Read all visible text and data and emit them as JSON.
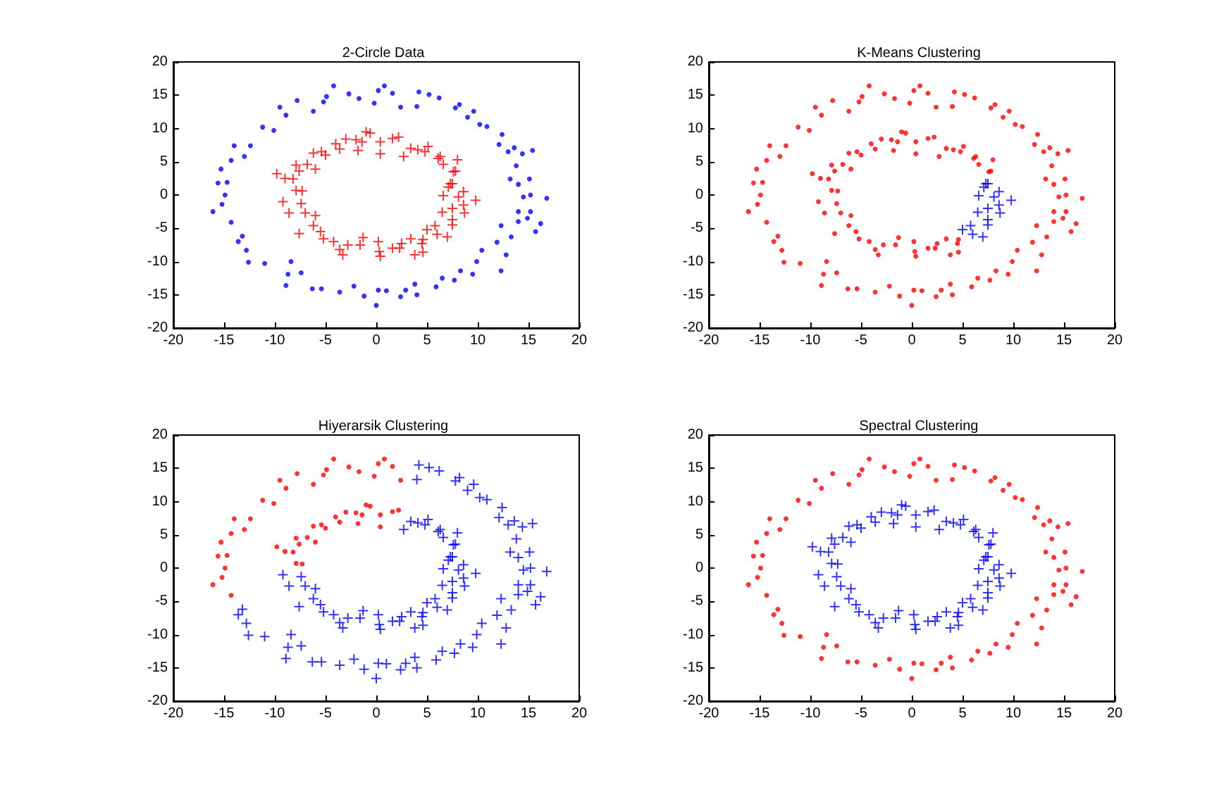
{
  "chart_data": [
    {
      "type": "scatter",
      "title": "2-Circle Data",
      "xlim": [
        -20,
        20
      ],
      "ylim": [
        -20,
        20
      ],
      "xticks": [
        -20,
        -15,
        -10,
        -5,
        0,
        5,
        10,
        15,
        20
      ],
      "yticks": [
        -20,
        -15,
        -10,
        -5,
        0,
        5,
        10,
        15,
        20
      ],
      "series": [
        {
          "color": "#0000ff",
          "marker": "circle",
          "x": [
            -4.2,
            0.8,
            0.2,
            1.6,
            -2.7,
            -1.7,
            -4.9,
            -5.2,
            -7.8,
            -9.5,
            -8.9,
            -6.2,
            -10.1,
            -11.2,
            -12.4,
            -14.0,
            -14.3,
            -13.0,
            -15.3,
            -14.7,
            -15.6,
            -14.9,
            -16.1,
            -15.2,
            -14.3,
            2.4,
            -0.2,
            -13.2,
            -13.6,
            -12.8,
            -12.6,
            -11.0,
            -8.4,
            -8.7,
            -7.4,
            -8.9,
            -6.3,
            -5.4,
            -3.6,
            -2.2,
            -1.2,
            0,
            0.2,
            1.0,
            2.4,
            2.9,
            4.0,
            3.8,
            5.9,
            6.5,
            7.7,
            8.3,
            9.5,
            9.9,
            10.4,
            12.3,
            12.3,
            11.9,
            12.8,
            13.3,
            14.0,
            14.0,
            14.9,
            15.7,
            16.2,
            15.2,
            14.5,
            15.2,
            16.8,
            14.0,
            13.2,
            15.1,
            13.8,
            15.4,
            14.4,
            13.6,
            13.0,
            12.1,
            12.4,
            10.2,
            10.9,
            9.0,
            9.6,
            8.2,
            7.8,
            6.2,
            5.2,
            4.2,
            4.0
          ],
          "values": [
            16.4,
            16.4,
            15.7,
            15.3,
            15.2,
            14.5,
            14.8,
            14.0,
            14.2,
            13.2,
            12.0,
            12.6,
            9.7,
            10.2,
            7.4,
            7.4,
            5.2,
            5.8,
            3.9,
            1.9,
            1.8,
            0,
            -2.5,
            -1.4,
            -4.1,
            13.2,
            13.8,
            -6.2,
            -7.0,
            -8.3,
            -10.1,
            -10.3,
            -10.0,
            -11.9,
            -11.7,
            -13.6,
            -14.1,
            -14.1,
            -14.6,
            -13.7,
            -15.2,
            -16.6,
            -14.3,
            -14.4,
            -15.3,
            -14.3,
            -15.0,
            -13.4,
            -13.8,
            -12.5,
            -12.8,
            -11.4,
            -11.9,
            -10.0,
            -8.3,
            -11.4,
            -4.6,
            -7.1,
            -9.0,
            -6.3,
            -4.0,
            -2.5,
            -3.5,
            -5.5,
            -4.3,
            -2.5,
            -0.3,
            0,
            -0.5,
            1.6,
            2.4,
            2.4,
            4.4,
            6.7,
            6.2,
            7.1,
            6.5,
            7.6,
            9.1,
            10.6,
            10.3,
            11.7,
            12.6,
            13.6,
            13.1,
            14.6,
            15.1,
            15.5,
            13.3
          ]
        },
        {
          "color": "#ff0000",
          "marker": "cross",
          "x": [
            -1.0,
            -0.6,
            -3.0,
            -2.0,
            -1.4,
            -4.0,
            -3.6,
            -1.8,
            0.4,
            1.6,
            2.2,
            0.4,
            -5.4,
            -6.2,
            -5.0,
            -6.8,
            -7.9,
            -7.6,
            -6.0,
            -9.8,
            -9.0,
            -8.2,
            -7.9,
            -7.3,
            -9.2,
            -7.4,
            -8.6,
            -7.0,
            -6.0,
            -7.6,
            -6.2,
            -5.5,
            -5.2,
            -4.2,
            -3.6,
            -3.3,
            -2.8,
            -1.6,
            -1.3,
            0.2,
            0.3,
            0.4,
            1.6,
            2.5,
            2.3,
            3.4,
            3.8,
            4.5,
            4.6,
            4.6,
            7.8,
            7.6,
            6.6,
            8.0,
            6.3,
            5.1,
            4.8,
            4.1,
            3.4,
            2.7,
            6.1,
            5.0,
            5.8,
            6.0,
            7.5,
            7.0,
            7.5,
            6.5,
            8.7,
            7.5,
            8.6,
            9.8,
            8.1,
            6.6,
            8.6,
            7.3,
            7.5,
            7.1
          ],
          "values": [
            9.5,
            9.3,
            8.4,
            8.3,
            8.0,
            7.7,
            6.9,
            6.7,
            8.0,
            8.5,
            8.7,
            6.2,
            6.5,
            6.3,
            6.0,
            4.6,
            4.5,
            3.6,
            3.9,
            3.2,
            2.5,
            2.4,
            0.7,
            0.6,
            -1.0,
            -1.3,
            -2.7,
            -2.7,
            -3.1,
            -5.8,
            -4.6,
            -5.5,
            -6.6,
            -7.0,
            -8.2,
            -9.0,
            -7.5,
            -7.5,
            -6.4,
            -7.0,
            -8.5,
            -9.2,
            -8.0,
            -7.3,
            -8.0,
            -6.6,
            -9.0,
            -7.3,
            -6.7,
            -8.6,
            3.6,
            3.5,
            4.6,
            5.3,
            5.8,
            7.3,
            6.5,
            6.8,
            7.0,
            5.8,
            5.5,
            -5.2,
            -4.6,
            -5.9,
            -4.5,
            -6.3,
            -3.7,
            -2.6,
            -2.7,
            -2.0,
            -1.5,
            -0.8,
            -0.3,
            -0.1,
            0.5,
            1.7,
            1.7,
            1.2
          ]
        }
      ]
    },
    {
      "type": "scatter",
      "title": "K-Means Clustering",
      "xlim": [
        -20,
        20
      ],
      "ylim": [
        -20,
        20
      ],
      "xticks": [
        -20,
        -15,
        -10,
        -5,
        0,
        5,
        10,
        15,
        20
      ],
      "yticks": [
        -20,
        -15,
        -10,
        -5,
        0,
        5,
        10,
        15,
        20
      ],
      "series": [
        {
          "color": "#ff0000",
          "marker": "circle",
          "x": [
            -4.2,
            0.8,
            0.2,
            1.6,
            -2.7,
            -1.7,
            -4.9,
            -5.2,
            -7.8,
            -9.5,
            -8.9,
            -6.2,
            -10.1,
            -11.2,
            -12.4,
            -14.0,
            -14.3,
            -13.0,
            -15.3,
            -14.7,
            -15.6,
            -14.9,
            -16.1,
            -15.2,
            -14.3,
            2.4,
            -0.2,
            -13.2,
            -13.6,
            -12.8,
            -12.6,
            -11.0,
            -8.4,
            -8.7,
            -7.4,
            -8.9,
            -6.3,
            -5.4,
            -3.6,
            -2.2,
            -1.2,
            0,
            0.2,
            1.0,
            2.4,
            2.9,
            4.0,
            3.8,
            5.9,
            6.5,
            7.7,
            8.3,
            9.5,
            9.9,
            10.4,
            12.3,
            12.3,
            11.9,
            12.8,
            13.3,
            14.0,
            14.0,
            14.9,
            15.7,
            16.2,
            15.2,
            14.5,
            15.2,
            16.8,
            14.0,
            13.2,
            15.1,
            13.8,
            15.4,
            14.4,
            13.6,
            13.0,
            12.1,
            12.4,
            10.2,
            10.9,
            9.0,
            9.6,
            8.2,
            7.8,
            6.2,
            5.2,
            4.2,
            4.0,
            -1.0,
            -0.6,
            -3.0,
            -2.0,
            -1.4,
            -4.0,
            -3.6,
            -1.8,
            0.4,
            1.6,
            2.2,
            0.4,
            -5.4,
            -6.2,
            -5.0,
            -6.8,
            -7.9,
            -7.6,
            -6.0,
            -9.8,
            -9.0,
            -8.2,
            -7.9,
            -7.3,
            -9.2,
            -7.4,
            -8.6,
            -7.0,
            -6.0,
            -7.6,
            -6.2,
            -5.5,
            -5.2,
            -4.2,
            -3.6,
            -3.3,
            -2.8,
            -1.6,
            -1.3,
            0.2,
            0.3,
            0.4,
            1.6,
            2.5,
            2.3,
            3.4,
            3.8,
            4.5,
            4.6,
            4.6,
            7.8,
            7.6,
            6.6,
            8.0,
            6.3,
            5.1,
            4.8,
            4.1,
            3.4,
            2.7,
            6.1
          ],
          "values": [
            16.4,
            16.4,
            15.7,
            15.3,
            15.2,
            14.5,
            14.8,
            14.0,
            14.2,
            13.2,
            12.0,
            12.6,
            9.7,
            10.2,
            7.4,
            7.4,
            5.2,
            5.8,
            3.9,
            1.9,
            1.8,
            0,
            -2.5,
            -1.4,
            -4.1,
            13.2,
            13.8,
            -6.2,
            -7.0,
            -8.3,
            -10.1,
            -10.3,
            -10.0,
            -11.9,
            -11.7,
            -13.6,
            -14.1,
            -14.1,
            -14.6,
            -13.7,
            -15.2,
            -16.6,
            -14.3,
            -14.4,
            -15.3,
            -14.3,
            -15.0,
            -13.4,
            -13.8,
            -12.5,
            -12.8,
            -11.4,
            -11.9,
            -10.0,
            -8.3,
            -11.4,
            -4.6,
            -7.1,
            -9.0,
            -6.3,
            -4.0,
            -2.5,
            -3.5,
            -5.5,
            -4.3,
            -2.5,
            -0.3,
            0,
            -0.5,
            1.6,
            2.4,
            2.4,
            4.4,
            6.7,
            6.2,
            7.1,
            6.5,
            7.6,
            9.1,
            10.6,
            10.3,
            11.7,
            12.6,
            13.6,
            13.1,
            14.6,
            15.1,
            15.5,
            13.3,
            9.5,
            9.3,
            8.4,
            8.3,
            8.0,
            7.7,
            6.9,
            6.7,
            8.0,
            8.5,
            8.7,
            6.2,
            6.5,
            6.3,
            6.0,
            4.6,
            4.5,
            3.6,
            3.9,
            3.2,
            2.5,
            2.4,
            0.7,
            0.6,
            -1.0,
            -1.3,
            -2.7,
            -2.7,
            -3.1,
            -5.8,
            -4.6,
            -5.5,
            -6.6,
            -7.0,
            -8.2,
            -9.0,
            -7.5,
            -7.5,
            -6.4,
            -7.0,
            -8.5,
            -9.2,
            -8.0,
            -7.3,
            -8.0,
            -6.6,
            -9.0,
            -7.3,
            -6.7,
            -8.6,
            3.6,
            3.5,
            4.6,
            5.3,
            5.8,
            7.3,
            6.5,
            6.8,
            7.0,
            5.8,
            5.5
          ]
        },
        {
          "color": "#0000ff",
          "marker": "cross",
          "x": [
            5.0,
            5.8,
            6.0,
            7.5,
            7.0,
            7.5,
            6.5,
            8.7,
            7.5,
            8.6,
            9.8,
            8.1,
            6.6,
            8.6,
            7.3,
            7.5,
            7.1
          ],
          "values": [
            -5.2,
            -4.6,
            -5.9,
            -4.5,
            -6.3,
            -3.7,
            -2.6,
            -2.7,
            -2.0,
            -1.5,
            -0.8,
            -0.3,
            -0.1,
            0.5,
            1.7,
            1.7,
            1.2
          ]
        }
      ]
    },
    {
      "type": "scatter",
      "title": "Hiyerarsik Clustering",
      "xlim": [
        -20,
        20
      ],
      "ylim": [
        -20,
        20
      ],
      "xticks": [
        -20,
        -15,
        -10,
        -5,
        0,
        5,
        10,
        15,
        20
      ],
      "yticks": [
        -20,
        -15,
        -10,
        -5,
        0,
        5,
        10,
        15,
        20
      ],
      "series": [
        {
          "color": "#ff0000",
          "marker": "circle",
          "x": [
            -4.2,
            0.8,
            0.2,
            1.6,
            -2.7,
            -1.7,
            -4.9,
            -5.2,
            -7.8,
            -9.5,
            -8.9,
            -6.2,
            -10.1,
            -11.2,
            -12.4,
            -14.0,
            -14.3,
            -13.0,
            -15.3,
            -14.7,
            -15.6,
            -14.9,
            -16.1,
            -15.2,
            -14.3,
            2.4,
            -0.2,
            -1.0,
            -0.6,
            -3.0,
            -2.0,
            -1.4,
            -4.0,
            -3.6,
            -1.8,
            0.4,
            1.6,
            2.2,
            0.4,
            -5.4,
            -6.2,
            -5.0,
            -6.8,
            -7.9,
            -7.6,
            -6.0,
            -9.8,
            -9.0,
            -8.2,
            -7.9,
            -7.3
          ],
          "values": [
            16.4,
            16.4,
            15.7,
            15.3,
            15.2,
            14.5,
            14.8,
            14.0,
            14.2,
            13.2,
            12.0,
            12.6,
            9.7,
            10.2,
            7.4,
            7.4,
            5.2,
            5.8,
            3.9,
            1.9,
            1.8,
            0,
            -2.5,
            -1.4,
            -4.1,
            13.2,
            13.8,
            9.5,
            9.3,
            8.4,
            8.3,
            8.0,
            7.7,
            6.9,
            6.7,
            8.0,
            8.5,
            8.7,
            6.2,
            6.5,
            6.3,
            6.0,
            4.6,
            4.5,
            3.6,
            3.9,
            3.2,
            2.5,
            2.4,
            0.7,
            0.6
          ]
        },
        {
          "color": "#0000ff",
          "marker": "cross",
          "x": [
            -13.2,
            -13.6,
            -12.8,
            -12.6,
            -11.0,
            -8.4,
            -8.7,
            -7.4,
            -8.9,
            -6.3,
            -5.4,
            -3.6,
            -2.2,
            -1.2,
            0,
            0.2,
            1.0,
            2.4,
            2.9,
            4.0,
            3.8,
            5.9,
            6.5,
            7.7,
            8.3,
            9.5,
            9.9,
            10.4,
            12.3,
            12.3,
            11.9,
            12.8,
            13.3,
            14.0,
            14.0,
            14.9,
            15.7,
            16.2,
            15.2,
            14.5,
            15.2,
            16.8,
            14.0,
            13.2,
            15.1,
            13.8,
            15.4,
            14.4,
            13.6,
            13.0,
            12.1,
            12.4,
            10.2,
            10.9,
            9.0,
            9.6,
            8.2,
            7.8,
            6.2,
            5.2,
            4.2,
            4.0,
            -9.2,
            -7.4,
            -8.6,
            -7.0,
            -6.0,
            -7.6,
            -6.2,
            -5.5,
            -5.2,
            -4.2,
            -3.6,
            -3.3,
            -2.8,
            -1.6,
            -1.3,
            0.2,
            0.3,
            0.4,
            1.6,
            2.5,
            2.3,
            3.4,
            3.8,
            4.5,
            4.6,
            4.6,
            7.8,
            7.6,
            6.6,
            8.0,
            6.3,
            5.1,
            4.8,
            4.1,
            3.4,
            2.7,
            6.1,
            5.0,
            5.8,
            6.0,
            7.5,
            7.0,
            7.5,
            6.5,
            8.7,
            7.5,
            8.6,
            9.8,
            8.1,
            6.6,
            8.6,
            7.3,
            7.5,
            7.1
          ],
          "values": [
            -6.2,
            -7.0,
            -8.3,
            -10.1,
            -10.3,
            -10.0,
            -11.9,
            -11.7,
            -13.6,
            -14.1,
            -14.1,
            -14.6,
            -13.7,
            -15.2,
            -16.6,
            -14.3,
            -14.4,
            -15.3,
            -14.3,
            -15.0,
            -13.4,
            -13.8,
            -12.5,
            -12.8,
            -11.4,
            -11.9,
            -10.0,
            -8.3,
            -11.4,
            -4.6,
            -7.1,
            -9.0,
            -6.3,
            -4.0,
            -2.5,
            -3.5,
            -5.5,
            -4.3,
            -2.5,
            -0.3,
            0,
            -0.5,
            1.6,
            2.4,
            2.4,
            4.4,
            6.7,
            6.2,
            7.1,
            6.5,
            7.6,
            9.1,
            10.6,
            10.3,
            11.7,
            12.6,
            13.6,
            13.1,
            14.6,
            15.1,
            15.5,
            13.3,
            -1.0,
            -1.3,
            -2.7,
            -2.7,
            -3.1,
            -5.8,
            -4.6,
            -5.5,
            -6.6,
            -7.0,
            -8.2,
            -9.0,
            -7.5,
            -7.5,
            -6.4,
            -7.0,
            -8.5,
            -9.2,
            -8.0,
            -7.3,
            -8.0,
            -6.6,
            -9.0,
            -7.3,
            -6.7,
            -8.6,
            3.6,
            3.5,
            4.6,
            5.3,
            5.8,
            7.3,
            6.5,
            6.8,
            7.0,
            5.8,
            5.5,
            -5.2,
            -4.6,
            -5.9,
            -4.5,
            -6.3,
            -3.7,
            -2.6,
            -2.7,
            -2.0,
            -1.5,
            -0.8,
            -0.3,
            -0.1,
            0.5,
            1.7,
            1.7,
            1.2
          ]
        }
      ]
    },
    {
      "type": "scatter",
      "title": "Spectral Clustering",
      "xlim": [
        -20,
        20
      ],
      "ylim": [
        -20,
        20
      ],
      "xticks": [
        -20,
        -15,
        -10,
        -5,
        0,
        5,
        10,
        15,
        20
      ],
      "yticks": [
        -20,
        -15,
        -10,
        -5,
        0,
        5,
        10,
        15,
        20
      ],
      "series": [
        {
          "color": "#ff0000",
          "marker": "circle",
          "x": [
            -4.2,
            0.8,
            0.2,
            1.6,
            -2.7,
            -1.7,
            -4.9,
            -5.2,
            -7.8,
            -9.5,
            -8.9,
            -6.2,
            -10.1,
            -11.2,
            -12.4,
            -14.0,
            -14.3,
            -13.0,
            -15.3,
            -14.7,
            -15.6,
            -14.9,
            -16.1,
            -15.2,
            -14.3,
            2.4,
            -0.2,
            -13.2,
            -13.6,
            -12.8,
            -12.6,
            -11.0,
            -8.4,
            -8.7,
            -7.4,
            -8.9,
            -6.3,
            -5.4,
            -3.6,
            -2.2,
            -1.2,
            0,
            0.2,
            1.0,
            2.4,
            2.9,
            4.0,
            3.8,
            5.9,
            6.5,
            7.7,
            8.3,
            9.5,
            9.9,
            10.4,
            12.3,
            12.3,
            11.9,
            12.8,
            13.3,
            14.0,
            14.0,
            14.9,
            15.7,
            16.2,
            15.2,
            14.5,
            15.2,
            16.8,
            14.0,
            13.2,
            15.1,
            13.8,
            15.4,
            14.4,
            13.6,
            13.0,
            12.1,
            12.4,
            10.2,
            10.9,
            9.0,
            9.6,
            8.2,
            7.8,
            6.2,
            5.2,
            4.2,
            4.0
          ],
          "values": [
            16.4,
            16.4,
            15.7,
            15.3,
            15.2,
            14.5,
            14.8,
            14.0,
            14.2,
            13.2,
            12.0,
            12.6,
            9.7,
            10.2,
            7.4,
            7.4,
            5.2,
            5.8,
            3.9,
            1.9,
            1.8,
            0,
            -2.5,
            -1.4,
            -4.1,
            13.2,
            13.8,
            -6.2,
            -7.0,
            -8.3,
            -10.1,
            -10.3,
            -10.0,
            -11.9,
            -11.7,
            -13.6,
            -14.1,
            -14.1,
            -14.6,
            -13.7,
            -15.2,
            -16.6,
            -14.3,
            -14.4,
            -15.3,
            -14.3,
            -15.0,
            -13.4,
            -13.8,
            -12.5,
            -12.8,
            -11.4,
            -11.9,
            -10.0,
            -8.3,
            -11.4,
            -4.6,
            -7.1,
            -9.0,
            -6.3,
            -4.0,
            -2.5,
            -3.5,
            -5.5,
            -4.3,
            -2.5,
            -0.3,
            0,
            -0.5,
            1.6,
            2.4,
            2.4,
            4.4,
            6.7,
            6.2,
            7.1,
            6.5,
            7.6,
            9.1,
            10.6,
            10.3,
            11.7,
            12.6,
            13.6,
            13.1,
            14.6,
            15.1,
            15.5,
            13.3
          ]
        },
        {
          "color": "#0000ff",
          "marker": "cross",
          "x": [
            -1.0,
            -0.6,
            -3.0,
            -2.0,
            -1.4,
            -4.0,
            -3.6,
            -1.8,
            0.4,
            1.6,
            2.2,
            0.4,
            -5.4,
            -6.2,
            -5.0,
            -6.8,
            -7.9,
            -7.6,
            -6.0,
            -9.8,
            -9.0,
            -8.2,
            -7.9,
            -7.3,
            -9.2,
            -7.4,
            -8.6,
            -7.0,
            -6.0,
            -7.6,
            -6.2,
            -5.5,
            -5.2,
            -4.2,
            -3.6,
            -3.3,
            -2.8,
            -1.6,
            -1.3,
            0.2,
            0.3,
            0.4,
            1.6,
            2.5,
            2.3,
            3.4,
            3.8,
            4.5,
            4.6,
            4.6,
            7.8,
            7.6,
            6.6,
            8.0,
            6.3,
            5.1,
            4.8,
            4.1,
            3.4,
            2.7,
            6.1,
            5.0,
            5.8,
            6.0,
            7.5,
            7.0,
            7.5,
            6.5,
            8.7,
            7.5,
            8.6,
            9.8,
            8.1,
            6.6,
            8.6,
            7.3,
            7.5,
            7.1
          ],
          "values": [
            9.5,
            9.3,
            8.4,
            8.3,
            8.0,
            7.7,
            6.9,
            6.7,
            8.0,
            8.5,
            8.7,
            6.2,
            6.5,
            6.3,
            6.0,
            4.6,
            4.5,
            3.6,
            3.9,
            3.2,
            2.5,
            2.4,
            0.7,
            0.6,
            -1.0,
            -1.3,
            -2.7,
            -2.7,
            -3.1,
            -5.8,
            -4.6,
            -5.5,
            -6.6,
            -7.0,
            -8.2,
            -9.0,
            -7.5,
            -7.5,
            -6.4,
            -7.0,
            -8.5,
            -9.2,
            -8.0,
            -7.3,
            -8.0,
            -6.6,
            -9.0,
            -7.3,
            -6.7,
            -8.6,
            3.6,
            3.5,
            4.6,
            5.3,
            5.8,
            7.3,
            6.5,
            6.8,
            7.0,
            5.8,
            5.5,
            -5.2,
            -4.6,
            -5.9,
            -4.5,
            -6.3,
            -3.7,
            -2.6,
            -2.7,
            -2.0,
            -1.5,
            -0.8,
            -0.3,
            -0.1,
            0.5,
            1.7,
            1.7,
            1.2
          ]
        }
      ]
    }
  ]
}
